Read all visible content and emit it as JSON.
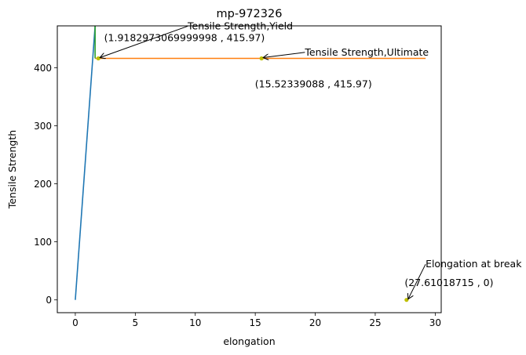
{
  "chart_data": {
    "type": "line",
    "title": "mp-972326",
    "xlabel": "elongation",
    "ylabel": "Tensile Strength",
    "xlim": [
      -1.5,
      30.5
    ],
    "ylim": [
      -22,
      472
    ],
    "x_ticks": [
      0,
      5,
      10,
      15,
      20,
      25,
      30
    ],
    "x_tick_labels": [
      "0",
      "5",
      "10",
      "15",
      "20",
      "25",
      "30"
    ],
    "y_ticks": [
      0,
      100,
      200,
      300,
      400
    ],
    "y_tick_labels": [
      "0",
      "100",
      "200",
      "300",
      "400"
    ],
    "grid": false,
    "series": [
      {
        "color": "#1f77b4",
        "points": [
          [
            0,
            0
          ],
          [
            1.65,
            472
          ]
        ]
      },
      {
        "color": "#ff7f0e",
        "points": [
          [
            1.65,
            415.97
          ],
          [
            29.2,
            415.97
          ]
        ]
      },
      {
        "color": "#2ca02c",
        "points": [
          [
            1.65,
            415.97
          ],
          [
            1.65,
            472
          ]
        ]
      }
    ],
    "markers": [
      {
        "x": 1.9182973069999998,
        "y": 415.97,
        "color": "#bfbf00"
      },
      {
        "x": 15.52339088,
        "y": 415.97,
        "color": "#bfbf00"
      },
      {
        "x": 27.61018715,
        "y": 0,
        "color": "#bfbf00"
      }
    ],
    "annotations": [
      {
        "text": "Tensile Strength,Yield",
        "target": [
          1.9182973069999998,
          415.97
        ],
        "text_at": [
          13.75,
          466
        ]
      },
      {
        "text": "(1.9182973069999998 , 415.97)",
        "text_at": [
          9.1,
          446
        ]
      },
      {
        "text": "Tensile Strength,Ultimate",
        "target": [
          15.52339088,
          415.97
        ],
        "text_at": [
          24.3,
          421
        ]
      },
      {
        "text": "(15.52339088 , 415.97)",
        "text_at": [
          19.85,
          366
        ]
      },
      {
        "text": "Elongation at break",
        "target": [
          27.61018715,
          0
        ],
        "text_at": [
          33.2,
          56
        ]
      },
      {
        "text": "(27.61018715 , 0)",
        "text_at": [
          31.15,
          24
        ]
      }
    ]
  }
}
